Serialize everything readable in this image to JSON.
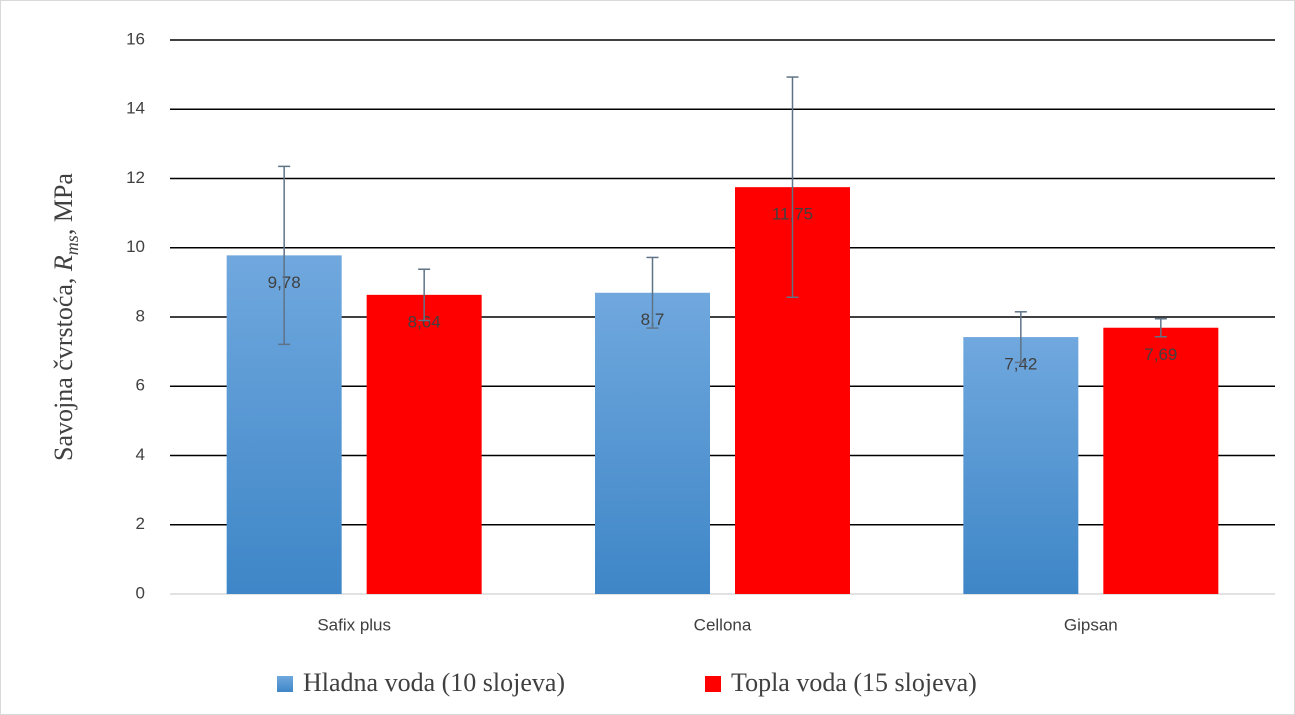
{
  "chart_data": {
    "type": "bar",
    "ylabel": {
      "prefix": "Savojna čvrstoća, ",
      "symbol": "R",
      "subscript": "ms",
      "suffix": ", MPa"
    },
    "categories": [
      "Safix plus",
      "Cellona",
      "Gipsan"
    ],
    "series": [
      {
        "name": "Hladna voda (10 slojeva)",
        "color": "#5b9bd5",
        "values": [
          9.78,
          8.7,
          7.42
        ],
        "value_labels": [
          "9,78",
          "8,7",
          "7,42"
        ],
        "errors": [
          2.57,
          1.02,
          0.73
        ]
      },
      {
        "name": "Topla voda (15 slojeva)",
        "color": "#ff0000",
        "values": [
          8.64,
          11.75,
          7.69
        ],
        "value_labels": [
          "8,64",
          "11,75",
          "7,69"
        ],
        "errors": [
          0.74,
          3.18,
          0.26
        ]
      }
    ],
    "ylim": [
      0,
      16
    ],
    "yticks": [
      0,
      2,
      4,
      6,
      8,
      10,
      12,
      14,
      16
    ],
    "grid": true,
    "legend": "bottom"
  }
}
